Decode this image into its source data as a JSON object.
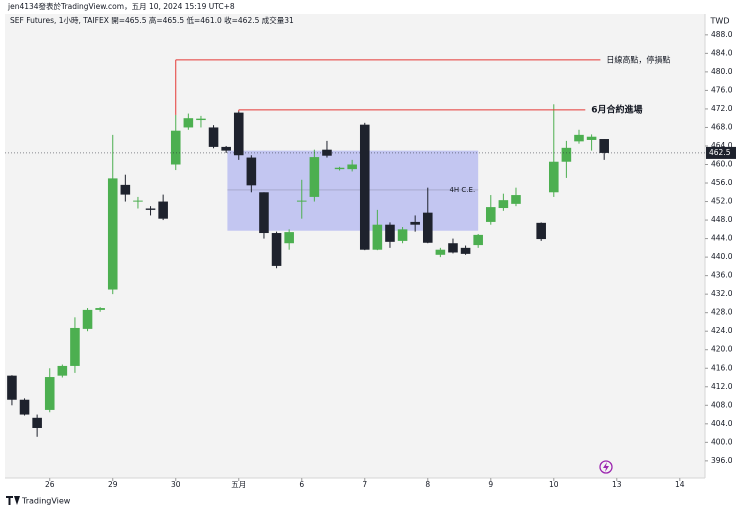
{
  "header": "jen4134發表於TradingView.com，五月 10, 2024 15:19 UTC+8",
  "chart_data": {
    "type": "candlestick",
    "legend": "SEF Futures, 1小時, TAIFEX  開=465.5  高=465.5  低=461.0  收=462.5  成交量31",
    "currency": "TWD",
    "x": [
      0,
      1,
      2,
      3,
      4,
      5,
      6,
      7,
      8,
      9,
      10,
      11,
      12,
      13,
      14,
      15,
      16,
      17,
      18,
      19,
      20,
      21,
      22,
      23,
      24,
      25,
      26,
      27,
      28,
      29,
      30,
      31,
      32,
      33,
      34,
      35,
      36,
      37,
      38,
      39,
      40,
      42,
      43,
      44,
      45,
      46,
      47
    ],
    "open": [
      414.4,
      409.2,
      405.3,
      407,
      414.4,
      416.5,
      424.5,
      428.6,
      433,
      455.6,
      452,
      450.5,
      452,
      460,
      468,
      469.6,
      468,
      463.8,
      471.2,
      461.5,
      454,
      445.2,
      443,
      452,
      453,
      463.2,
      459,
      459,
      468.6,
      441.6,
      447,
      443.5,
      447.6,
      449.6,
      440.5,
      443,
      442,
      442.6,
      447.6,
      450.6,
      451.5,
      447.4,
      454,
      460.6,
      465,
      465.3,
      465.5
    ],
    "high": [
      414.5,
      409.5,
      406,
      416,
      416.8,
      427,
      429,
      429.2,
      466.4,
      457.8,
      453,
      451,
      453.5,
      470.7,
      471,
      470.5,
      468.5,
      464,
      471.5,
      462,
      454,
      445.5,
      446,
      456.7,
      463.2,
      465.1,
      459.5,
      461,
      469,
      450.2,
      447.5,
      446.5,
      449,
      455,
      442,
      444,
      442.5,
      445,
      453.4,
      453.7,
      455,
      447.5,
      473,
      465.1,
      467.5,
      466.5,
      465.5
    ],
    "low": [
      408,
      405.8,
      401.2,
      406.5,
      414,
      415,
      424,
      428.2,
      432,
      452,
      450.5,
      449,
      448,
      458.8,
      467.5,
      468,
      463.5,
      462.5,
      461,
      454,
      444,
      437.6,
      441.6,
      448.3,
      452,
      461.5,
      458.7,
      458.5,
      441.5,
      441.5,
      442,
      443,
      445.5,
      443,
      440,
      440.8,
      440.5,
      442,
      447,
      450,
      451,
      443.5,
      453,
      457.1,
      464.5,
      463,
      461
    ],
    "close": [
      409.2,
      406,
      403.1,
      414.1,
      416.5,
      424.7,
      428.6,
      429,
      457,
      453.5,
      452.2,
      450.2,
      448.3,
      467.3,
      470,
      469.9,
      463.8,
      463,
      462,
      455.5,
      445.2,
      438.1,
      445.4,
      452.2,
      461.6,
      461.9,
      459.3,
      460,
      441.6,
      447,
      443.3,
      446,
      447,
      443.1,
      441.6,
      441,
      440.7,
      444.8,
      450.8,
      452.3,
      453.4,
      443.9,
      460.6,
      463.6,
      466.4,
      466,
      462.5
    ],
    "up_color": "#4caf50",
    "down_color": "#1e222d",
    "xlim": [
      -0.55,
      55
    ],
    "xticks": [
      {
        "value": 3,
        "label": "26"
      },
      {
        "value": 8,
        "label": "29"
      },
      {
        "value": 13,
        "label": "30"
      },
      {
        "value": 18,
        "label": "五月"
      },
      {
        "value": 23,
        "label": "6"
      },
      {
        "value": 28,
        "label": "7"
      },
      {
        "value": 33,
        "label": "8"
      },
      {
        "value": 38,
        "label": "9"
      },
      {
        "value": 43,
        "label": "10"
      },
      {
        "value": 48,
        "label": "13"
      },
      {
        "value": 53,
        "label": "14"
      }
    ],
    "ylim": [
      392.3,
      492.5
    ],
    "yticks": [
      {
        "value": 396,
        "label": "396.0"
      },
      {
        "value": 400,
        "label": "400.0"
      },
      {
        "value": 404,
        "label": "404.0"
      },
      {
        "value": 408,
        "label": "408.0"
      },
      {
        "value": 412,
        "label": "412.0"
      },
      {
        "value": 416,
        "label": "416.0"
      },
      {
        "value": 420,
        "label": "420.0"
      },
      {
        "value": 424,
        "label": "424.0"
      },
      {
        "value": 428,
        "label": "428.0"
      },
      {
        "value": 432,
        "label": "432.0"
      },
      {
        "value": 436,
        "label": "436.0"
      },
      {
        "value": 440,
        "label": "440.0"
      },
      {
        "value": 444,
        "label": "444.0"
      },
      {
        "value": 448,
        "label": "448.0"
      },
      {
        "value": 452,
        "label": "452.0"
      },
      {
        "value": 456,
        "label": "456.0"
      },
      {
        "value": 460,
        "label": "460.0"
      },
      {
        "value": 464,
        "label": "464.0"
      },
      {
        "value": 468,
        "label": "468.0"
      },
      {
        "value": 472,
        "label": "472.0"
      },
      {
        "value": 476,
        "label": "476.0"
      },
      {
        "value": 480,
        "label": "480.0"
      },
      {
        "value": 484,
        "label": "484.0"
      },
      {
        "value": 488,
        "label": "488.0"
      }
    ],
    "current_price": 462.5,
    "annotations": [
      {
        "text": "日線高點，停損點",
        "y": 482.6,
        "x_start": 13,
        "x_end": 46.7,
        "color": "#e53935"
      },
      {
        "text": "6月合約進場",
        "y": 471.8,
        "x_start": 18,
        "x_end": 45.5,
        "color": "#e53935"
      }
    ],
    "box": {
      "label": "4H C.E.",
      "x": [
        17.1,
        37
      ],
      "y": [
        445.7,
        463
      ],
      "mid": 454.5,
      "color": "#b3b7f0"
    }
  },
  "watermark": "TradingView"
}
